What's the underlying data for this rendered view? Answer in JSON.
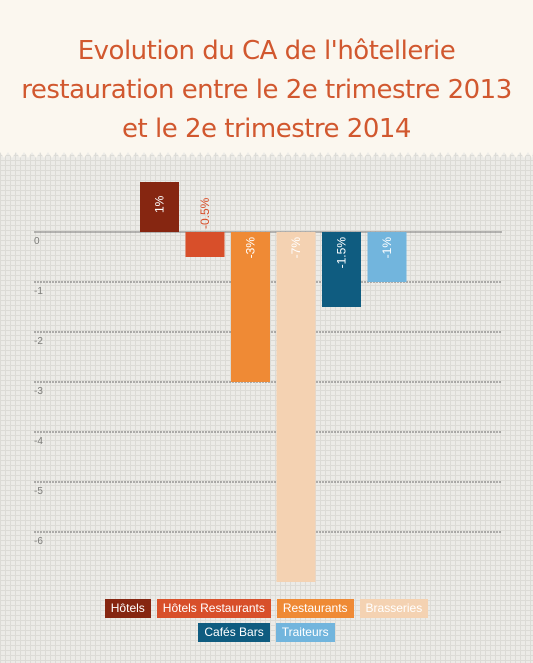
{
  "title_lines": [
    "Evolution du CA de l'hôtellerie",
    "restauration entre le 2e trimestre 2013",
    "et le 2e trimestre 2014"
  ],
  "chart_data": {
    "type": "bar",
    "title": "Evolution du CA de l'hôtellerie restauration entre le 2e trimestre 2013 et le 2e trimestre 2014",
    "categories": [
      "Hôtels",
      "Hôtels Restaurants",
      "Restaurants",
      "Brasseries",
      "Cafés Bars",
      "Traiteurs"
    ],
    "values": [
      1,
      -0.5,
      -3,
      -7,
      -1.5,
      -1
    ],
    "data_labels": [
      "1%",
      "-0.5%",
      "-3%",
      "-7%",
      "-1.5%",
      "-1%"
    ],
    "colors": [
      "#862611",
      "#d84f2a",
      "#ef8a35",
      "#f4d2b2",
      "#0f5c80",
      "#72b5dd"
    ],
    "y_ticks": [
      "0",
      "-1",
      "-2",
      "-3",
      "-4",
      "-5",
      "-6"
    ],
    "ylim": [
      -7,
      1
    ],
    "grid": true,
    "legend_position": "bottom"
  }
}
